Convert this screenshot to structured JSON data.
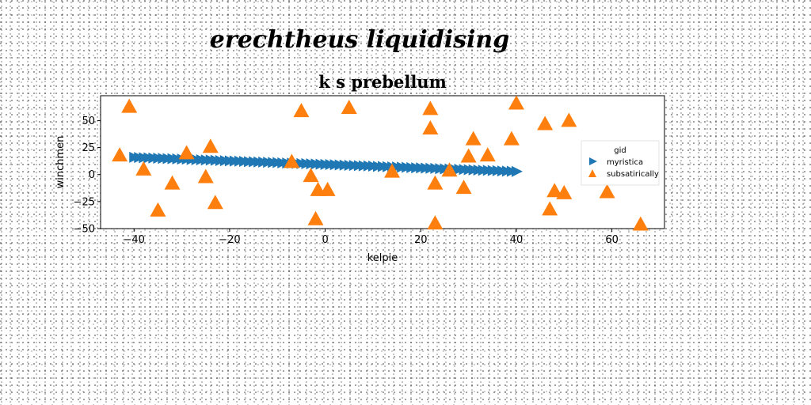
{
  "chart_data": {
    "type": "scatter",
    "suptitle": "erechtheus liquidising",
    "title": "k s prebellum",
    "xlabel": "kelpie",
    "ylabel": "winchmen",
    "xlim": [
      -47,
      71
    ],
    "ylim": [
      -50,
      73
    ],
    "xticks": [
      "−40",
      "−20",
      "0",
      "20",
      "40",
      "60"
    ],
    "xtick_values": [
      -40,
      -20,
      0,
      20,
      40,
      60
    ],
    "yticks": [
      "50",
      "25",
      "0",
      "−25",
      "−50"
    ],
    "ytick_values": [
      50,
      25,
      0,
      -25,
      -50
    ],
    "grid": false,
    "legend": {
      "title": "gid",
      "placement": "right"
    },
    "series": [
      {
        "name": "myristica",
        "marker": "triangle-right",
        "color": "#1f77b4",
        "x": [
          -40,
          -39,
          -38,
          -37,
          -36,
          -35,
          -34,
          -33,
          -32,
          -31,
          -30,
          -29,
          -28,
          -27,
          -26,
          -25,
          -24,
          -23,
          -22,
          -21,
          -20,
          -19,
          -18,
          -17,
          -16,
          -15,
          -14,
          -13,
          -12,
          -11,
          -10,
          -9,
          -8,
          -7,
          -6,
          -5,
          -4,
          -3,
          -2,
          -1,
          0,
          1,
          2,
          3,
          4,
          5,
          6,
          7,
          8,
          9,
          10,
          11,
          12,
          13,
          14,
          15,
          16,
          17,
          18,
          19,
          20,
          21,
          22,
          23,
          24,
          25,
          26,
          27,
          28,
          29,
          30,
          31,
          32,
          33,
          34,
          35,
          36,
          37,
          38,
          39,
          40
        ],
        "y": [
          16.0,
          15.8,
          15.6,
          15.5,
          15.3,
          15.2,
          15.0,
          14.8,
          14.7,
          14.5,
          14.3,
          14.2,
          14.0,
          13.8,
          13.7,
          13.5,
          13.4,
          13.2,
          13.0,
          12.9,
          12.7,
          12.5,
          12.4,
          12.2,
          12.0,
          11.9,
          11.7,
          11.6,
          11.4,
          11.2,
          11.1,
          10.9,
          10.7,
          10.6,
          10.4,
          10.2,
          10.1,
          9.9,
          9.8,
          9.6,
          9.4,
          9.3,
          9.1,
          8.9,
          8.8,
          8.6,
          8.5,
          8.3,
          8.1,
          8.0,
          7.8,
          7.6,
          7.5,
          7.3,
          7.1,
          7.0,
          6.8,
          6.7,
          6.5,
          6.3,
          6.2,
          6.0,
          5.8,
          5.7,
          5.5,
          5.3,
          5.2,
          5.0,
          4.9,
          4.7,
          4.5,
          4.4,
          4.2,
          4.0,
          3.9,
          3.7,
          3.6,
          3.4,
          3.2,
          3.1,
          2.9
        ]
      },
      {
        "name": "subsatirically",
        "marker": "triangle-up",
        "color": "#ff7f0e",
        "x": [
          -41,
          -43,
          -38,
          -35,
          -32,
          -29,
          -24,
          -25,
          -23,
          -5,
          -7,
          -3,
          -1.5,
          0.5,
          -2,
          5,
          14,
          22,
          22,
          23,
          23,
          26,
          29,
          30,
          31,
          34,
          39,
          40,
          46,
          47,
          48,
          50,
          51,
          59,
          66
        ],
        "y": [
          63,
          18,
          5,
          -33,
          -8,
          20,
          26,
          -2,
          -26,
          59,
          12,
          -1,
          -14,
          -14,
          -41,
          62,
          3,
          61,
          43,
          -8,
          -45,
          4,
          -12,
          17,
          33,
          18,
          33,
          66,
          47,
          -32,
          -15,
          -17,
          50,
          -16,
          -46
        ]
      }
    ]
  }
}
